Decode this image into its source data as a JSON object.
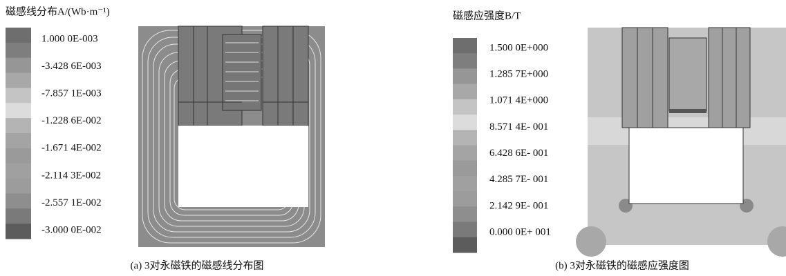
{
  "panels": [
    {
      "legend_title": "磁感线分布A/(Wb·m⁻¹)",
      "labels": [
        "1.000 0E-003",
        "-3.428 6E-003",
        "-7.857 1E-003",
        "-1.228 6E-002",
        "-1.671 4E-002",
        "-2.114 3E-002",
        "-2.557 1E-002",
        "-3.000 0E-002"
      ],
      "caption": "(a) 3对永磁铁的磁感线分布图"
    },
    {
      "legend_title": "磁感应强度B/T",
      "labels": [
        "1.500 0E+000",
        "1.285 7E+000",
        "1.071 4E+000",
        "8.571 4E- 001",
        "6.428 6E- 001",
        "4.285 7E- 001",
        "2.142 9E- 001",
        "0.000 0E+ 001"
      ],
      "caption": "(b) 3对永磁铁的磁感应强度图"
    }
  ]
}
